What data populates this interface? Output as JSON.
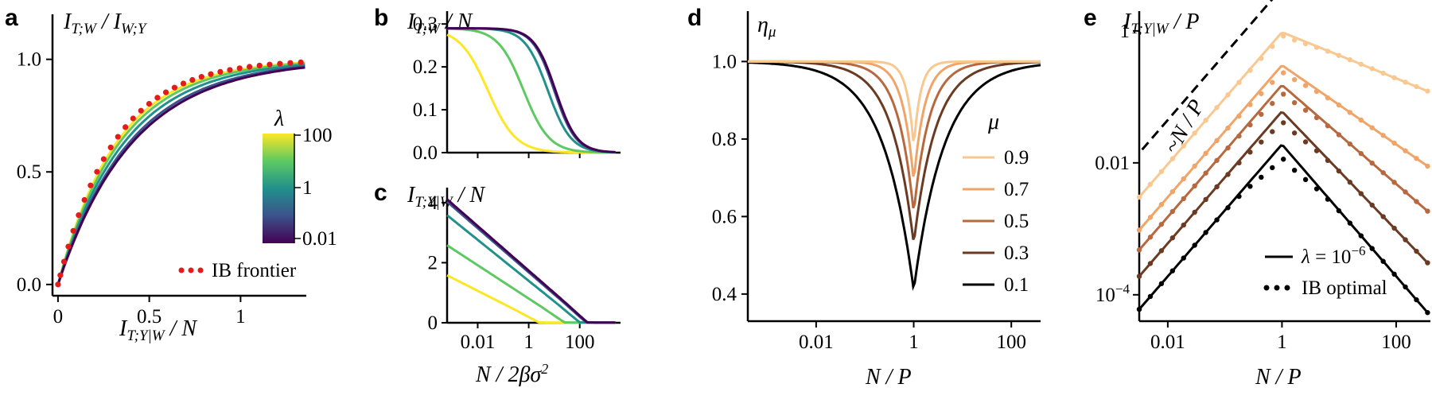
{
  "colors": {
    "viridis": [
      "#440154",
      "#3b528b",
      "#21918c",
      "#5ec962",
      "#fde725"
    ],
    "mu_series": [
      "#000000",
      "#4a2a1a",
      "#8c4a2e",
      "#d07a50",
      "#f0a468",
      "#f8c890"
    ],
    "ib_frontier": "#e41a1c",
    "axis": "#000000"
  },
  "chart_data": [
    {
      "id": "a",
      "panel_label": "a",
      "type": "line",
      "title": "I_{T;W} / I_{W;Y}",
      "xlabel": "I_{T;Y|W} / N",
      "ylabel": "",
      "xlim": [
        -0.03,
        1.36
      ],
      "ylim": [
        -0.05,
        1.2
      ],
      "xticks": [
        0,
        0.5,
        1
      ],
      "xtick_labels": [
        "0",
        "0.5",
        "1"
      ],
      "yticks": [
        0,
        0.5,
        1
      ],
      "ytick_labels": [
        "0.0",
        "0.5",
        "1.0"
      ],
      "series": [
        {
          "name": "λ = 100",
          "curve_k": 3.1
        },
        {
          "name": "λ = 10",
          "curve_k": 2.95
        },
        {
          "name": "λ = 1",
          "curve_k": 2.75
        },
        {
          "name": "λ = 0.1",
          "curve_k": 2.55
        },
        {
          "name": "λ = 0.01",
          "curve_k": 2.45
        }
      ],
      "ib_frontier": {
        "name": "IB frontier",
        "curve_k": 3.25,
        "n_points": 32
      },
      "colorbar": {
        "label": "λ",
        "tick_labels": [
          "100",
          "1",
          "0.01"
        ]
      }
    },
    {
      "id": "b",
      "panel_label": "b",
      "type": "line",
      "title": "I_{T;W} / N",
      "xlabel": "",
      "xscale": "log",
      "xlim_log10": [
        -3.2,
        3.6
      ],
      "ylim": [
        0,
        0.33
      ],
      "yticks": [
        0,
        0.1,
        0.2,
        0.3
      ],
      "ytick_labels": [
        "0.0",
        "0.1",
        "0.2",
        "0.3"
      ],
      "xticks_log10": [
        -2,
        0,
        2
      ],
      "plateau": 0.29,
      "series": [
        {
          "name": "λ = 100",
          "midpoint_log10": -1.6,
          "width": 0.55
        },
        {
          "name": "λ = 10",
          "midpoint_log10": -0.2,
          "width": 0.5
        },
        {
          "name": "λ = 1",
          "midpoint_log10": 0.75,
          "width": 0.45
        },
        {
          "name": "λ = 0.1",
          "midpoint_log10": 1.0,
          "width": 0.42
        },
        {
          "name": "λ = 0.01",
          "midpoint_log10": 1.05,
          "width": 0.42
        }
      ]
    },
    {
      "id": "c",
      "panel_label": "c",
      "type": "line",
      "title": "I_{T;Y|W} / N",
      "xlabel": "N / 2βσ²",
      "xscale": "log",
      "xlim_log10": [
        -3.2,
        3.6
      ],
      "ylim": [
        0,
        4.5
      ],
      "yticks": [
        0,
        2,
        4
      ],
      "ytick_labels": [
        "0",
        "2",
        "4"
      ],
      "xticks_log10": [
        -2,
        0,
        2
      ],
      "xtick_labels": [
        "0.01",
        "1",
        "100"
      ],
      "series": [
        {
          "name": "λ = 100",
          "y_left": 1.55,
          "end_log10": -0.5
        },
        {
          "name": "λ = 10",
          "y_left": 2.55,
          "end_log10": 0.5
        },
        {
          "name": "λ = 1",
          "y_left": 3.55,
          "end_log10": 1.1
        },
        {
          "name": "λ = 0.1",
          "y_left": 4.0,
          "end_log10": 1.35
        },
        {
          "name": "λ = 0.01",
          "y_left": 4.08,
          "end_log10": 1.4
        }
      ]
    },
    {
      "id": "d",
      "panel_label": "d",
      "type": "line",
      "title": "η_μ",
      "xlabel": "N / P",
      "xscale": "log",
      "xlim_log10": [
        -3.4,
        2.6
      ],
      "ylim": [
        0.33,
        1.13
      ],
      "yticks": [
        0.4,
        0.6,
        0.8,
        1.0
      ],
      "ytick_labels": [
        "0.4",
        "0.6",
        "0.8",
        "1.0"
      ],
      "xticks_log10": [
        -2,
        0,
        2
      ],
      "xtick_labels": [
        "0.01",
        "1",
        "100"
      ],
      "legend_title": "μ",
      "series": [
        {
          "name": "0.9",
          "min_value": 0.78,
          "width_log10": 0.28
        },
        {
          "name": "0.7",
          "min_value": 0.69,
          "width_log10": 0.45
        },
        {
          "name": "0.5",
          "min_value": 0.61,
          "width_log10": 0.65
        },
        {
          "name": "0.3",
          "min_value": 0.53,
          "width_log10": 0.9
        },
        {
          "name": "0.1",
          "min_value": 0.41,
          "width_log10": 1.25
        }
      ]
    },
    {
      "id": "e",
      "panel_label": "e",
      "type": "line",
      "title": "I_{T;Y|W} / P",
      "xlabel": "N / P",
      "xscale": "log",
      "yscale": "log",
      "xlim_log10": [
        -2.5,
        2.6
      ],
      "ylim_log10": [
        -4.4,
        0.3
      ],
      "xticks_log10": [
        -2,
        0,
        2
      ],
      "xtick_labels": [
        "0.01",
        "1",
        "100"
      ],
      "yticks_log10": [
        -4,
        -2,
        0
      ],
      "ytick_labels": [
        "10^{-4}",
        "0.01",
        "1"
      ],
      "reference_line": {
        "label": "~N / P",
        "from": [
          -2.45,
          -1.8
        ],
        "to": [
          -0.15,
          0.5
        ]
      },
      "series": [
        {
          "name": "μ = 0.9",
          "peak_log10": -0.02,
          "slope_right": -0.35,
          "ib_gap": 0.05
        },
        {
          "name": "μ = 0.7",
          "peak_log10": -0.52,
          "slope_right": -0.6,
          "ib_gap": 0.1
        },
        {
          "name": "μ = 0.5",
          "peak_log10": -0.82,
          "slope_right": -0.75,
          "ib_gap": 0.12
        },
        {
          "name": "μ = 0.3",
          "peak_log10": -1.22,
          "slope_right": -0.9,
          "ib_gap": 0.15
        },
        {
          "name": "μ = 0.1",
          "peak_log10": -1.72,
          "slope_right": -1.0,
          "ib_gap": 0.2
        }
      ],
      "legend": [
        {
          "style": "solid",
          "label": "λ = 10^{-6}"
        },
        {
          "style": "dotted",
          "label": "IB optimal"
        }
      ]
    }
  ]
}
